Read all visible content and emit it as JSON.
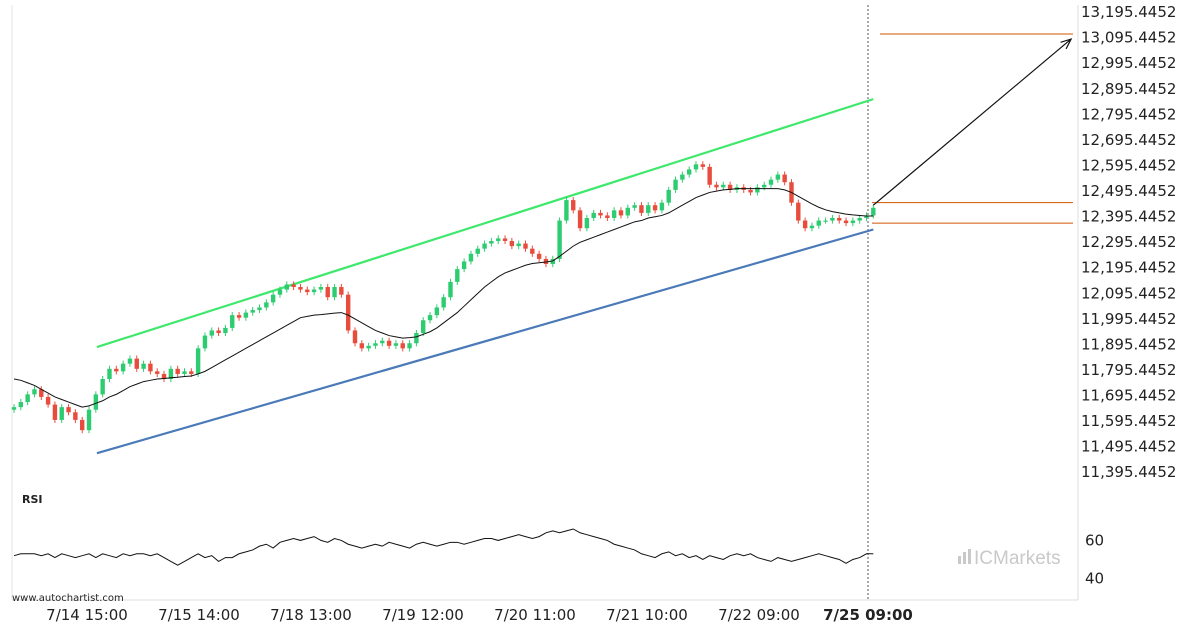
{
  "chart_data": {
    "type": "candlestick",
    "instrument_axis": {
      "y_ticks": [
        "13,195.4452",
        "13,095.4452",
        "12,995.4452",
        "12,895.4452",
        "12,795.4452",
        "12,695.4452",
        "12,595.4452",
        "12,495.4452",
        "12,395.4452",
        "12,295.4452",
        "12,195.4452",
        "12,095.4452",
        "11,995.4452",
        "11,895.4452",
        "11,795.4452",
        "11,695.4452",
        "11,595.4452",
        "11,495.4452",
        "11,395.4452"
      ],
      "y_tick_values": [
        13195.4452,
        13095.4452,
        12995.4452,
        12895.4452,
        12795.4452,
        12695.4452,
        12595.4452,
        12495.4452,
        12395.4452,
        12295.4452,
        12195.4452,
        12095.4452,
        11995.4452,
        11895.4452,
        11795.4452,
        11695.4452,
        11595.4452,
        11495.4452,
        11395.4452
      ],
      "ylim": [
        11345.4452,
        13215.4452
      ]
    },
    "x_ticks": [
      "7/14 15:00",
      "7/15 14:00",
      "7/18 13:00",
      "7/19 12:00",
      "7/20 11:00",
      "7/21 10:00",
      "7/22 09:00",
      "7/25 09:00"
    ],
    "x_tick_highlight": "7/25 09:00",
    "closes": [
      11650,
      11670,
      11700,
      11720,
      11690,
      11660,
      11600,
      11650,
      11630,
      11600,
      11560,
      11640,
      11700,
      11760,
      11800,
      11790,
      11820,
      11840,
      11800,
      11820,
      11790,
      11780,
      11760,
      11800,
      11780,
      11790,
      11780,
      11880,
      11930,
      11950,
      11940,
      11960,
      12010,
      12000,
      12020,
      12030,
      12040,
      12060,
      12090,
      12110,
      12130,
      12120,
      12110,
      12100,
      12110,
      12120,
      12080,
      12120,
      12090,
      11950,
      11900,
      11880,
      11890,
      11900,
      11910,
      11890,
      11900,
      11880,
      11900,
      11940,
      11990,
      12010,
      12040,
      12080,
      12140,
      12190,
      12220,
      12250,
      12270,
      12290,
      12300,
      12310,
      12300,
      12280,
      12290,
      12270,
      12250,
      12230,
      12210,
      12230,
      12380,
      12460,
      12420,
      12350,
      12390,
      12410,
      12400,
      12390,
      12420,
      12400,
      12430,
      12440,
      12410,
      12440,
      12420,
      12450,
      12500,
      12540,
      12560,
      12580,
      12600,
      12590,
      12520,
      12510,
      12520,
      12500,
      12510,
      12500,
      12490,
      12510,
      12520,
      12540,
      12560,
      12530,
      12450,
      12380,
      12350,
      12360,
      12380,
      12380,
      12390,
      12380,
      12370,
      12380,
      12390,
      12400,
      12430
    ],
    "moving_average": [
      11760,
      11755,
      11745,
      11735,
      11720,
      11705,
      11690,
      11680,
      11670,
      11660,
      11650,
      11655,
      11665,
      11675,
      11690,
      11700,
      11715,
      11730,
      11740,
      11750,
      11755,
      11760,
      11762,
      11765,
      11767,
      11770,
      11772,
      11780,
      11790,
      11805,
      11820,
      11835,
      11850,
      11865,
      11880,
      11895,
      11910,
      11925,
      11940,
      11955,
      11970,
      11985,
      12000,
      12005,
      12010,
      12012,
      12015,
      12018,
      12020,
      12010,
      11995,
      11980,
      11965,
      11950,
      11940,
      11930,
      11925,
      11920,
      11922,
      11925,
      11935,
      11945,
      11960,
      11980,
      12000,
      12020,
      12045,
      12070,
      12095,
      12120,
      12140,
      12160,
      12175,
      12185,
      12195,
      12205,
      12212,
      12215,
      12218,
      12222,
      12240,
      12260,
      12280,
      12295,
      12305,
      12315,
      12325,
      12335,
      12345,
      12355,
      12365,
      12375,
      12380,
      12390,
      12395,
      12400,
      12410,
      12425,
      12440,
      12455,
      12470,
      12480,
      12490,
      12495,
      12500,
      12502,
      12505,
      12505,
      12505,
      12505,
      12505,
      12505,
      12505,
      12500,
      12490,
      12475,
      12460,
      12445,
      12432,
      12422,
      12415,
      12410,
      12405,
      12402,
      12400,
      12398,
      12398
    ],
    "pattern_upper_line": {
      "start": {
        "bar": 6,
        "value": 11885
      },
      "end": {
        "bar": 126,
        "value": 12855
      }
    },
    "pattern_lower_line": {
      "start": {
        "bar": 6,
        "value": 11470
      },
      "end": {
        "bar": 126,
        "value": 12345
      }
    },
    "forecast_arrow": {
      "start": {
        "bar": 126,
        "value": 12440
      },
      "end": {
        "bar": 155,
        "value": 13090
      }
    },
    "horizontal_levels": [
      13110,
      12450,
      12370
    ],
    "rsi": {
      "title": "RSI",
      "y_ticks": [
        "60",
        "40"
      ],
      "y_tick_values": [
        60,
        40
      ],
      "ylim": [
        34,
        77
      ],
      "values": [
        52,
        53,
        53,
        53,
        52,
        53,
        51,
        53,
        52,
        51,
        52,
        53,
        51,
        53,
        52,
        51,
        53,
        52,
        53,
        53,
        52,
        53,
        51,
        49,
        47,
        49,
        51,
        53,
        51,
        52,
        49,
        51,
        51,
        53,
        54,
        55,
        57,
        58,
        56,
        59,
        60,
        61,
        60,
        61,
        62,
        60,
        59,
        61,
        60,
        58,
        57,
        56,
        57,
        58,
        57,
        59,
        58,
        57,
        56,
        58,
        59,
        58,
        57,
        58,
        59,
        59,
        58,
        59,
        60,
        61,
        61,
        60,
        61,
        62,
        63,
        62,
        61,
        62,
        64,
        65,
        64,
        65,
        66,
        64,
        63,
        62,
        61,
        60,
        58,
        57,
        56,
        55,
        53,
        52,
        51,
        53,
        54,
        52,
        53,
        51,
        52,
        50,
        52,
        51,
        50,
        52,
        53,
        52,
        53,
        51,
        50,
        49,
        51,
        50,
        49,
        50,
        51,
        52,
        53,
        52,
        51,
        50,
        48,
        50,
        51,
        53,
        53
      ]
    },
    "colors": {
      "up": "#2ecc71",
      "down": "#e74c3c",
      "upper_line": "#3ee86b",
      "lower_line": "#4a7ab8",
      "level": "#d35400",
      "arrow": "#111111",
      "moving_average": "#111111"
    }
  },
  "footer": {
    "watermark": "www.autochartist.com",
    "brand": "ICMarkets",
    "brand_icon": "bar-chart-logo-icon"
  }
}
